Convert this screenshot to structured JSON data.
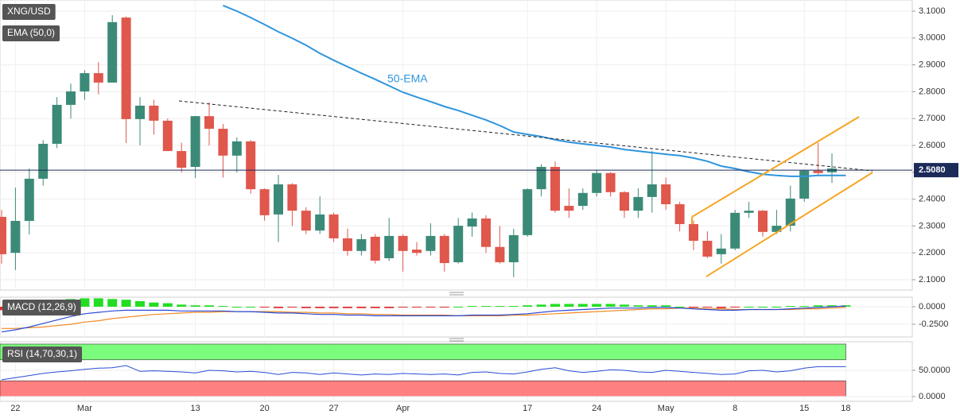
{
  "chart_data": [
    {
      "type": "candlestick",
      "title": "XNG/USD",
      "indicator": "EMA (50,0)",
      "categories": [
        null,
        "22",
        null,
        null,
        null,
        null,
        "Mar",
        null,
        null,
        null,
        null,
        null,
        null,
        null,
        "13",
        null,
        null,
        null,
        null,
        "20",
        null,
        null,
        null,
        null,
        "27",
        null,
        null,
        null,
        null,
        "Apr",
        null,
        null,
        null,
        null,
        null,
        null,
        null,
        null,
        "17",
        null,
        null,
        null,
        null,
        "24",
        null,
        null,
        null,
        null,
        "May",
        null,
        null,
        null,
        null,
        "8",
        null,
        null,
        null,
        null,
        "15",
        null,
        null,
        "18"
      ],
      "open": [
        2.334,
        2.2,
        2.319,
        2.476,
        2.606,
        2.751,
        2.801,
        2.869,
        2.834,
        3.076,
        2.698,
        2.748,
        2.692,
        2.579,
        2.52,
        2.709,
        2.662,
        2.562,
        2.615,
        2.437,
        2.343,
        2.455,
        2.357,
        2.283,
        2.343,
        2.254,
        2.207,
        2.26,
        2.18,
        2.263,
        2.212,
        2.207,
        2.263,
        2.165,
        2.298,
        2.328,
        2.222,
        2.165,
        2.266,
        2.437,
        2.52,
        2.375,
        2.375,
        2.423,
        2.497,
        2.426,
        2.357,
        2.408,
        2.455,
        2.381,
        2.307,
        2.245,
        2.195,
        2.216,
        2.349,
        2.357,
        2.278,
        2.301,
        2.402,
        2.506,
        2.5,
        null
      ],
      "high": [
        2.36,
        2.443,
        2.514,
        2.62,
        2.78,
        2.83,
        2.88,
        2.91,
        3.085,
        3.08,
        2.78,
        2.77,
        2.7,
        2.61,
        2.71,
        2.76,
        2.68,
        2.63,
        2.62,
        2.44,
        2.49,
        2.46,
        2.37,
        2.41,
        2.35,
        2.29,
        2.27,
        2.27,
        2.33,
        2.27,
        2.24,
        2.31,
        2.27,
        2.33,
        2.35,
        2.34,
        2.3,
        2.29,
        2.44,
        2.53,
        2.54,
        2.44,
        2.44,
        2.51,
        2.5,
        2.43,
        2.44,
        2.58,
        2.48,
        2.39,
        2.32,
        2.28,
        2.27,
        2.36,
        2.39,
        2.36,
        2.36,
        2.45,
        2.51,
        2.61,
        2.57,
        null
      ],
      "low": [
        2.16,
        2.136,
        2.269,
        2.45,
        2.59,
        2.7,
        2.77,
        2.79,
        2.834,
        2.609,
        2.6,
        2.64,
        2.58,
        2.5,
        2.479,
        2.6,
        2.48,
        2.5,
        2.42,
        2.32,
        2.24,
        2.3,
        2.27,
        2.27,
        2.24,
        2.19,
        2.19,
        2.16,
        2.17,
        2.13,
        2.19,
        2.19,
        2.13,
        2.16,
        2.26,
        2.2,
        2.16,
        2.11,
        2.26,
        2.41,
        2.35,
        2.33,
        2.36,
        2.41,
        2.41,
        2.33,
        2.33,
        2.35,
        2.36,
        2.28,
        2.21,
        2.18,
        2.16,
        2.21,
        2.33,
        2.26,
        2.27,
        2.28,
        2.39,
        2.49,
        2.46,
        null
      ],
      "close": [
        2.195,
        2.319,
        2.476,
        2.606,
        2.751,
        2.801,
        2.869,
        2.834,
        3.059,
        2.698,
        2.748,
        2.692,
        2.579,
        2.517,
        2.709,
        2.662,
        2.562,
        2.615,
        2.437,
        2.34,
        2.455,
        2.357,
        2.283,
        2.343,
        2.254,
        2.207,
        2.251,
        2.171,
        2.263,
        2.207,
        2.2,
        2.263,
        2.162,
        2.301,
        2.328,
        2.222,
        2.165,
        2.266,
        2.437,
        2.52,
        2.357,
        2.357,
        2.423,
        2.497,
        2.426,
        2.357,
        2.408,
        2.455,
        2.381,
        2.307,
        2.245,
        2.186,
        2.216,
        2.349,
        2.357,
        2.278,
        2.301,
        2.402,
        2.506,
        2.497,
        2.514,
        null
      ],
      "up_color": "#3b8a78",
      "down_color": "#e0574c",
      "ema": {
        "name": "50-EMA",
        "color": "#2f95dc",
        "values": [
          null,
          null,
          null,
          null,
          null,
          null,
          null,
          null,
          null,
          null,
          null,
          null,
          null,
          null,
          null,
          null,
          3.121,
          3.1,
          3.076,
          3.05,
          3.023,
          2.999,
          2.973,
          2.943,
          2.917,
          2.893,
          2.869,
          2.846,
          2.822,
          2.798,
          2.78,
          2.763,
          2.745,
          2.73,
          2.712,
          2.695,
          2.674,
          2.65,
          2.641,
          2.633,
          2.621,
          2.612,
          2.606,
          2.6,
          2.594,
          2.585,
          2.579,
          2.573,
          2.567,
          2.562,
          2.553,
          2.541,
          2.523,
          2.514,
          2.502,
          2.493,
          2.488,
          2.485,
          2.485,
          2.488,
          2.488,
          2.488
        ]
      },
      "current_price": {
        "value": 2.508,
        "label": "2.5080"
      },
      "ylim": [
        2.0615,
        3.1414
      ],
      "yticks": [
        {
          "value": 2.1,
          "label": "2.1000"
        },
        {
          "value": 2.2,
          "label": "2.2000"
        },
        {
          "value": 2.3,
          "label": "2.3000"
        },
        {
          "value": 2.4,
          "label": "2.4000"
        },
        {
          "value": 2.5,
          "label": "2.5000"
        },
        {
          "value": 2.6,
          "label": "2.6000"
        },
        {
          "value": 2.7,
          "label": "2.7000"
        },
        {
          "value": 2.8,
          "label": "2.8000"
        },
        {
          "value": 2.9,
          "label": "2.9000"
        },
        {
          "value": 3.0,
          "label": "3.0000"
        },
        {
          "value": 3.1,
          "label": "3.1000"
        }
      ],
      "grid": true
    },
    {
      "type": "macd",
      "title": "MACD (12,26,9)",
      "histogram": {
        "up_color": "#22dd22",
        "down_color": "#e03030",
        "values": [
          -0.05,
          -0.02,
          0.01,
          0.05,
          0.08,
          0.11,
          0.12,
          0.12,
          0.11,
          0.1,
          0.08,
          0.06,
          0.05,
          0.03,
          0.02,
          0.02,
          0.01,
          0,
          0,
          -0.01,
          -0.02,
          -0.01,
          -0.02,
          -0.02,
          -0.02,
          -0.02,
          -0.02,
          -0.02,
          -0.02,
          -0.01,
          -0.01,
          -0.01,
          -0.01,
          0,
          0.01,
          0.01,
          0.01,
          0.01,
          0.02,
          0.03,
          0.04,
          0.04,
          0.04,
          0.04,
          0.04,
          0.03,
          0.02,
          0.02,
          0.02,
          0,
          -0.01,
          -0.01,
          -0.02,
          -0.01,
          0,
          0,
          0,
          0.01,
          0.01,
          0.02,
          0.02,
          0.02
        ]
      },
      "macd": {
        "color": "#2a4bd7",
        "values": [
          -0.36,
          -0.33,
          -0.29,
          -0.24,
          -0.19,
          -0.14,
          -0.1,
          -0.08,
          -0.06,
          -0.05,
          -0.05,
          -0.05,
          -0.05,
          -0.06,
          -0.06,
          -0.06,
          -0.06,
          -0.07,
          -0.07,
          -0.08,
          -0.09,
          -0.09,
          -0.1,
          -0.11,
          -0.11,
          -0.12,
          -0.12,
          -0.13,
          -0.13,
          -0.13,
          -0.13,
          -0.13,
          -0.13,
          -0.13,
          -0.12,
          -0.12,
          -0.12,
          -0.11,
          -0.1,
          -0.08,
          -0.06,
          -0.05,
          -0.04,
          -0.03,
          -0.02,
          -0.02,
          -0.02,
          -0.01,
          -0.01,
          -0.02,
          -0.03,
          -0.04,
          -0.05,
          -0.05,
          -0.04,
          -0.04,
          -0.04,
          -0.03,
          -0.02,
          -0.01,
          0.0,
          0.01
        ]
      },
      "signal": {
        "color": "#f08a24",
        "values": [
          -0.31,
          -0.31,
          -0.3,
          -0.29,
          -0.27,
          -0.25,
          -0.22,
          -0.2,
          -0.17,
          -0.15,
          -0.13,
          -0.11,
          -0.1,
          -0.09,
          -0.08,
          -0.08,
          -0.07,
          -0.07,
          -0.07,
          -0.07,
          -0.07,
          -0.08,
          -0.08,
          -0.09,
          -0.09,
          -0.1,
          -0.1,
          -0.11,
          -0.11,
          -0.12,
          -0.12,
          -0.12,
          -0.12,
          -0.13,
          -0.13,
          -0.13,
          -0.13,
          -0.12,
          -0.12,
          -0.11,
          -0.1,
          -0.09,
          -0.08,
          -0.07,
          -0.06,
          -0.05,
          -0.04,
          -0.03,
          -0.03,
          -0.02,
          -0.02,
          -0.03,
          -0.03,
          -0.04,
          -0.04,
          -0.04,
          -0.04,
          -0.04,
          -0.03,
          -0.03,
          -0.02,
          -0.01
        ]
      },
      "ylim": [
        -0.432,
        0.136
      ],
      "yticks": [
        {
          "value": 0,
          "label": "0.0000"
        },
        {
          "value": -0.25,
          "label": "-0.2500"
        }
      ]
    },
    {
      "type": "rsi",
      "title": "RSI (14,70,30,1)",
      "rsi": {
        "color": "#2a4bd7",
        "values": [
          32,
          36,
          40,
          44,
          47,
          49,
          52,
          54,
          55,
          59,
          48,
          49,
          48,
          47,
          45,
          50,
          49,
          47,
          48,
          46,
          42,
          46,
          45,
          42,
          45,
          43,
          41,
          43,
          42,
          44,
          43,
          42,
          43,
          41,
          46,
          47,
          44,
          43,
          47,
          52,
          55,
          49,
          46,
          48,
          51,
          50,
          47,
          46,
          50,
          48,
          46,
          44,
          42,
          43,
          49,
          50,
          47,
          49,
          54,
          57,
          57,
          57
        ]
      },
      "bands": [
        {
          "from": 70,
          "to": 100,
          "color": "#7cfc7c"
        },
        {
          "from": 0,
          "to": 30,
          "color": "#ff8080"
        }
      ],
      "ylim": [
        -9.1,
        104.5
      ],
      "yticks": [
        {
          "value": 50,
          "label": "50.0000"
        },
        {
          "value": 0,
          "label": "0.0000"
        }
      ]
    }
  ]
}
